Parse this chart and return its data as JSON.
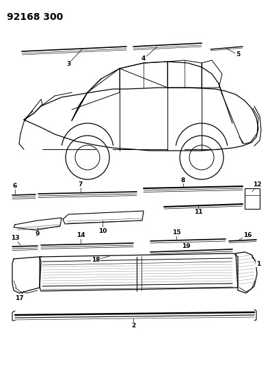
{
  "title": "92168 300",
  "bg_color": "#ffffff",
  "line_color": "#000000",
  "title_fontsize": 10,
  "label_fontsize": 6.5,
  "fig_width": 3.95,
  "fig_height": 5.33,
  "dpi": 100
}
